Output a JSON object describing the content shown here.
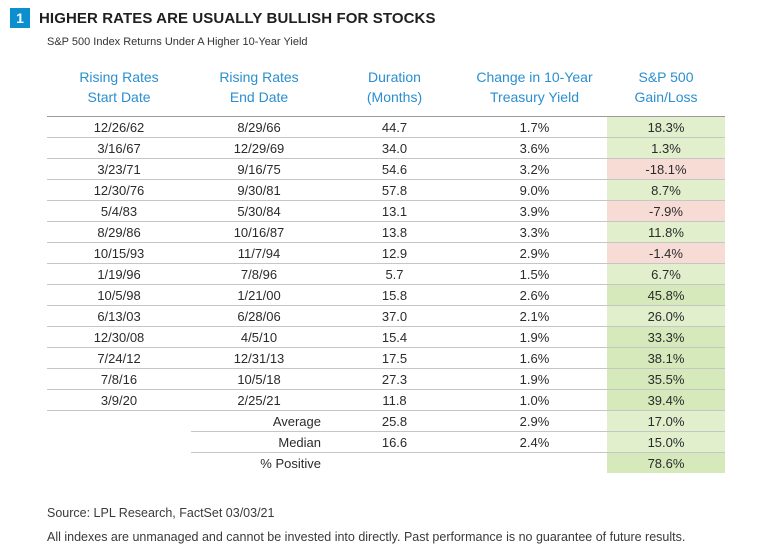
{
  "header": {
    "badge_number": "1",
    "title": "HIGHER RATES ARE USUALLY BULLISH FOR STOCKS",
    "subtitle": "S&P 500 Index Returns Under A Higher 10-Year Yield"
  },
  "colors": {
    "badge": "#0b8fce",
    "header_text": "#2a8fcf",
    "positive_cell": "#e1efcd",
    "strong_positive_cell": "#d5e9bb",
    "negative_cell": "#f7dcd6"
  },
  "chart_data": {
    "type": "table",
    "title": "HIGHER RATES ARE USUALLY BULLISH FOR STOCKS",
    "subtitle": "S&P 500 Index Returns Under A Higher 10-Year Yield",
    "columns": [
      [
        "Rising Rates",
        "Start Date"
      ],
      [
        "Rising Rates",
        "End Date"
      ],
      [
        "Duration",
        "(Months)"
      ],
      [
        "Change in 10-Year",
        "Treasury Yield"
      ],
      [
        "S&P 500",
        "Gain/Loss"
      ]
    ],
    "rows": [
      [
        "12/26/62",
        "8/29/66",
        "44.7",
        "1.7%",
        "18.3%"
      ],
      [
        "3/16/67",
        "12/29/69",
        "34.0",
        "3.6%",
        "1.3%"
      ],
      [
        "3/23/71",
        "9/16/75",
        "54.6",
        "3.2%",
        "-18.1%"
      ],
      [
        "12/30/76",
        "9/30/81",
        "57.8",
        "9.0%",
        "8.7%"
      ],
      [
        "5/4/83",
        "5/30/84",
        "13.1",
        "3.9%",
        "-7.9%"
      ],
      [
        "8/29/86",
        "10/16/87",
        "13.8",
        "3.3%",
        "11.8%"
      ],
      [
        "10/15/93",
        "11/7/94",
        "12.9",
        "2.9%",
        "-1.4%"
      ],
      [
        "1/19/96",
        "7/8/96",
        "5.7",
        "1.5%",
        "6.7%"
      ],
      [
        "10/5/98",
        "1/21/00",
        "15.8",
        "2.6%",
        "45.8%"
      ],
      [
        "6/13/03",
        "6/28/06",
        "37.0",
        "2.1%",
        "26.0%"
      ],
      [
        "12/30/08",
        "4/5/10",
        "15.4",
        "1.9%",
        "33.3%"
      ],
      [
        "7/24/12",
        "12/31/13",
        "17.5",
        "1.6%",
        "38.1%"
      ],
      [
        "7/8/16",
        "10/5/18",
        "27.3",
        "1.9%",
        "35.5%"
      ],
      [
        "3/9/20",
        "2/25/21",
        "11.8",
        "1.0%",
        "39.4%"
      ]
    ],
    "summary": [
      {
        "label": "Average",
        "duration": "25.8",
        "yield_change": "2.9%",
        "gain": "17.0%"
      },
      {
        "label": "Median",
        "duration": "16.6",
        "yield_change": "2.4%",
        "gain": "15.0%"
      },
      {
        "label": "% Positive",
        "duration": "",
        "yield_change": "",
        "gain": "78.6%"
      }
    ]
  },
  "footer": {
    "source": "Source: LPL Research, FactSet 03/03/21",
    "disclaimer": "All indexes are unmanaged and cannot be invested into directly. Past performance is no guarantee of future results."
  }
}
